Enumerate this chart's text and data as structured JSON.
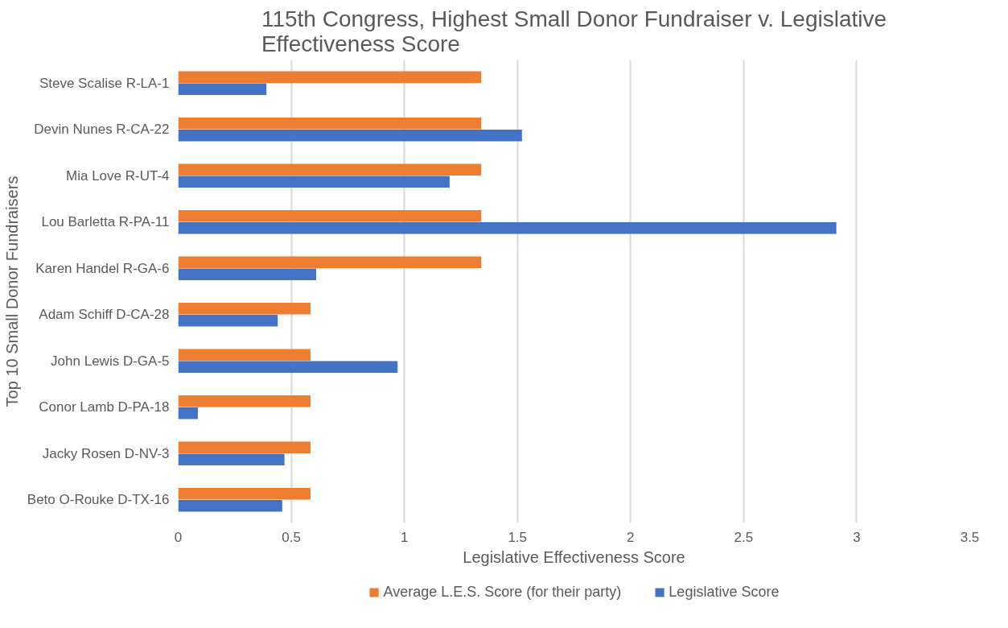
{
  "chart_data": {
    "type": "bar",
    "orientation": "horizontal",
    "title": "115th Congress, Highest Small Donor Fundraiser v. Legislative Effectiveness Score",
    "xlabel": "Legislative Effectiveness Score",
    "ylabel": "Top 10 Small Donor Fundraisers",
    "categories": [
      "Steve Scalise R-LA-1",
      "Devin Nunes R-CA-22",
      "Mia Love R-UT-4",
      "Lou Barletta R-PA-11",
      "Karen Handel R-GA-6",
      "Adam Schiff D-CA-28",
      "John Lewis D-GA-5",
      "Conor Lamb D-PA-18",
      "Jacky Rosen D-NV-3",
      "Beto O-Rouke D-TX-16"
    ],
    "series": [
      {
        "name": "Average L.E.S. Score (for their party)",
        "color": "#ed7d31",
        "values": [
          1.34,
          1.34,
          1.34,
          1.34,
          1.34,
          0.585,
          0.585,
          0.585,
          0.585,
          0.585
        ]
      },
      {
        "name": "Legislative Score",
        "color": "#4472c4",
        "values": [
          0.39,
          1.52,
          1.2,
          2.91,
          0.61,
          0.44,
          0.97,
          0.087,
          0.47,
          0.46
        ]
      }
    ],
    "xlim": [
      0,
      3.5
    ],
    "xticks": [
      0,
      0.5,
      1,
      1.5,
      2,
      2.5,
      3,
      3.5
    ],
    "grid": "x",
    "legend": "bottom"
  }
}
